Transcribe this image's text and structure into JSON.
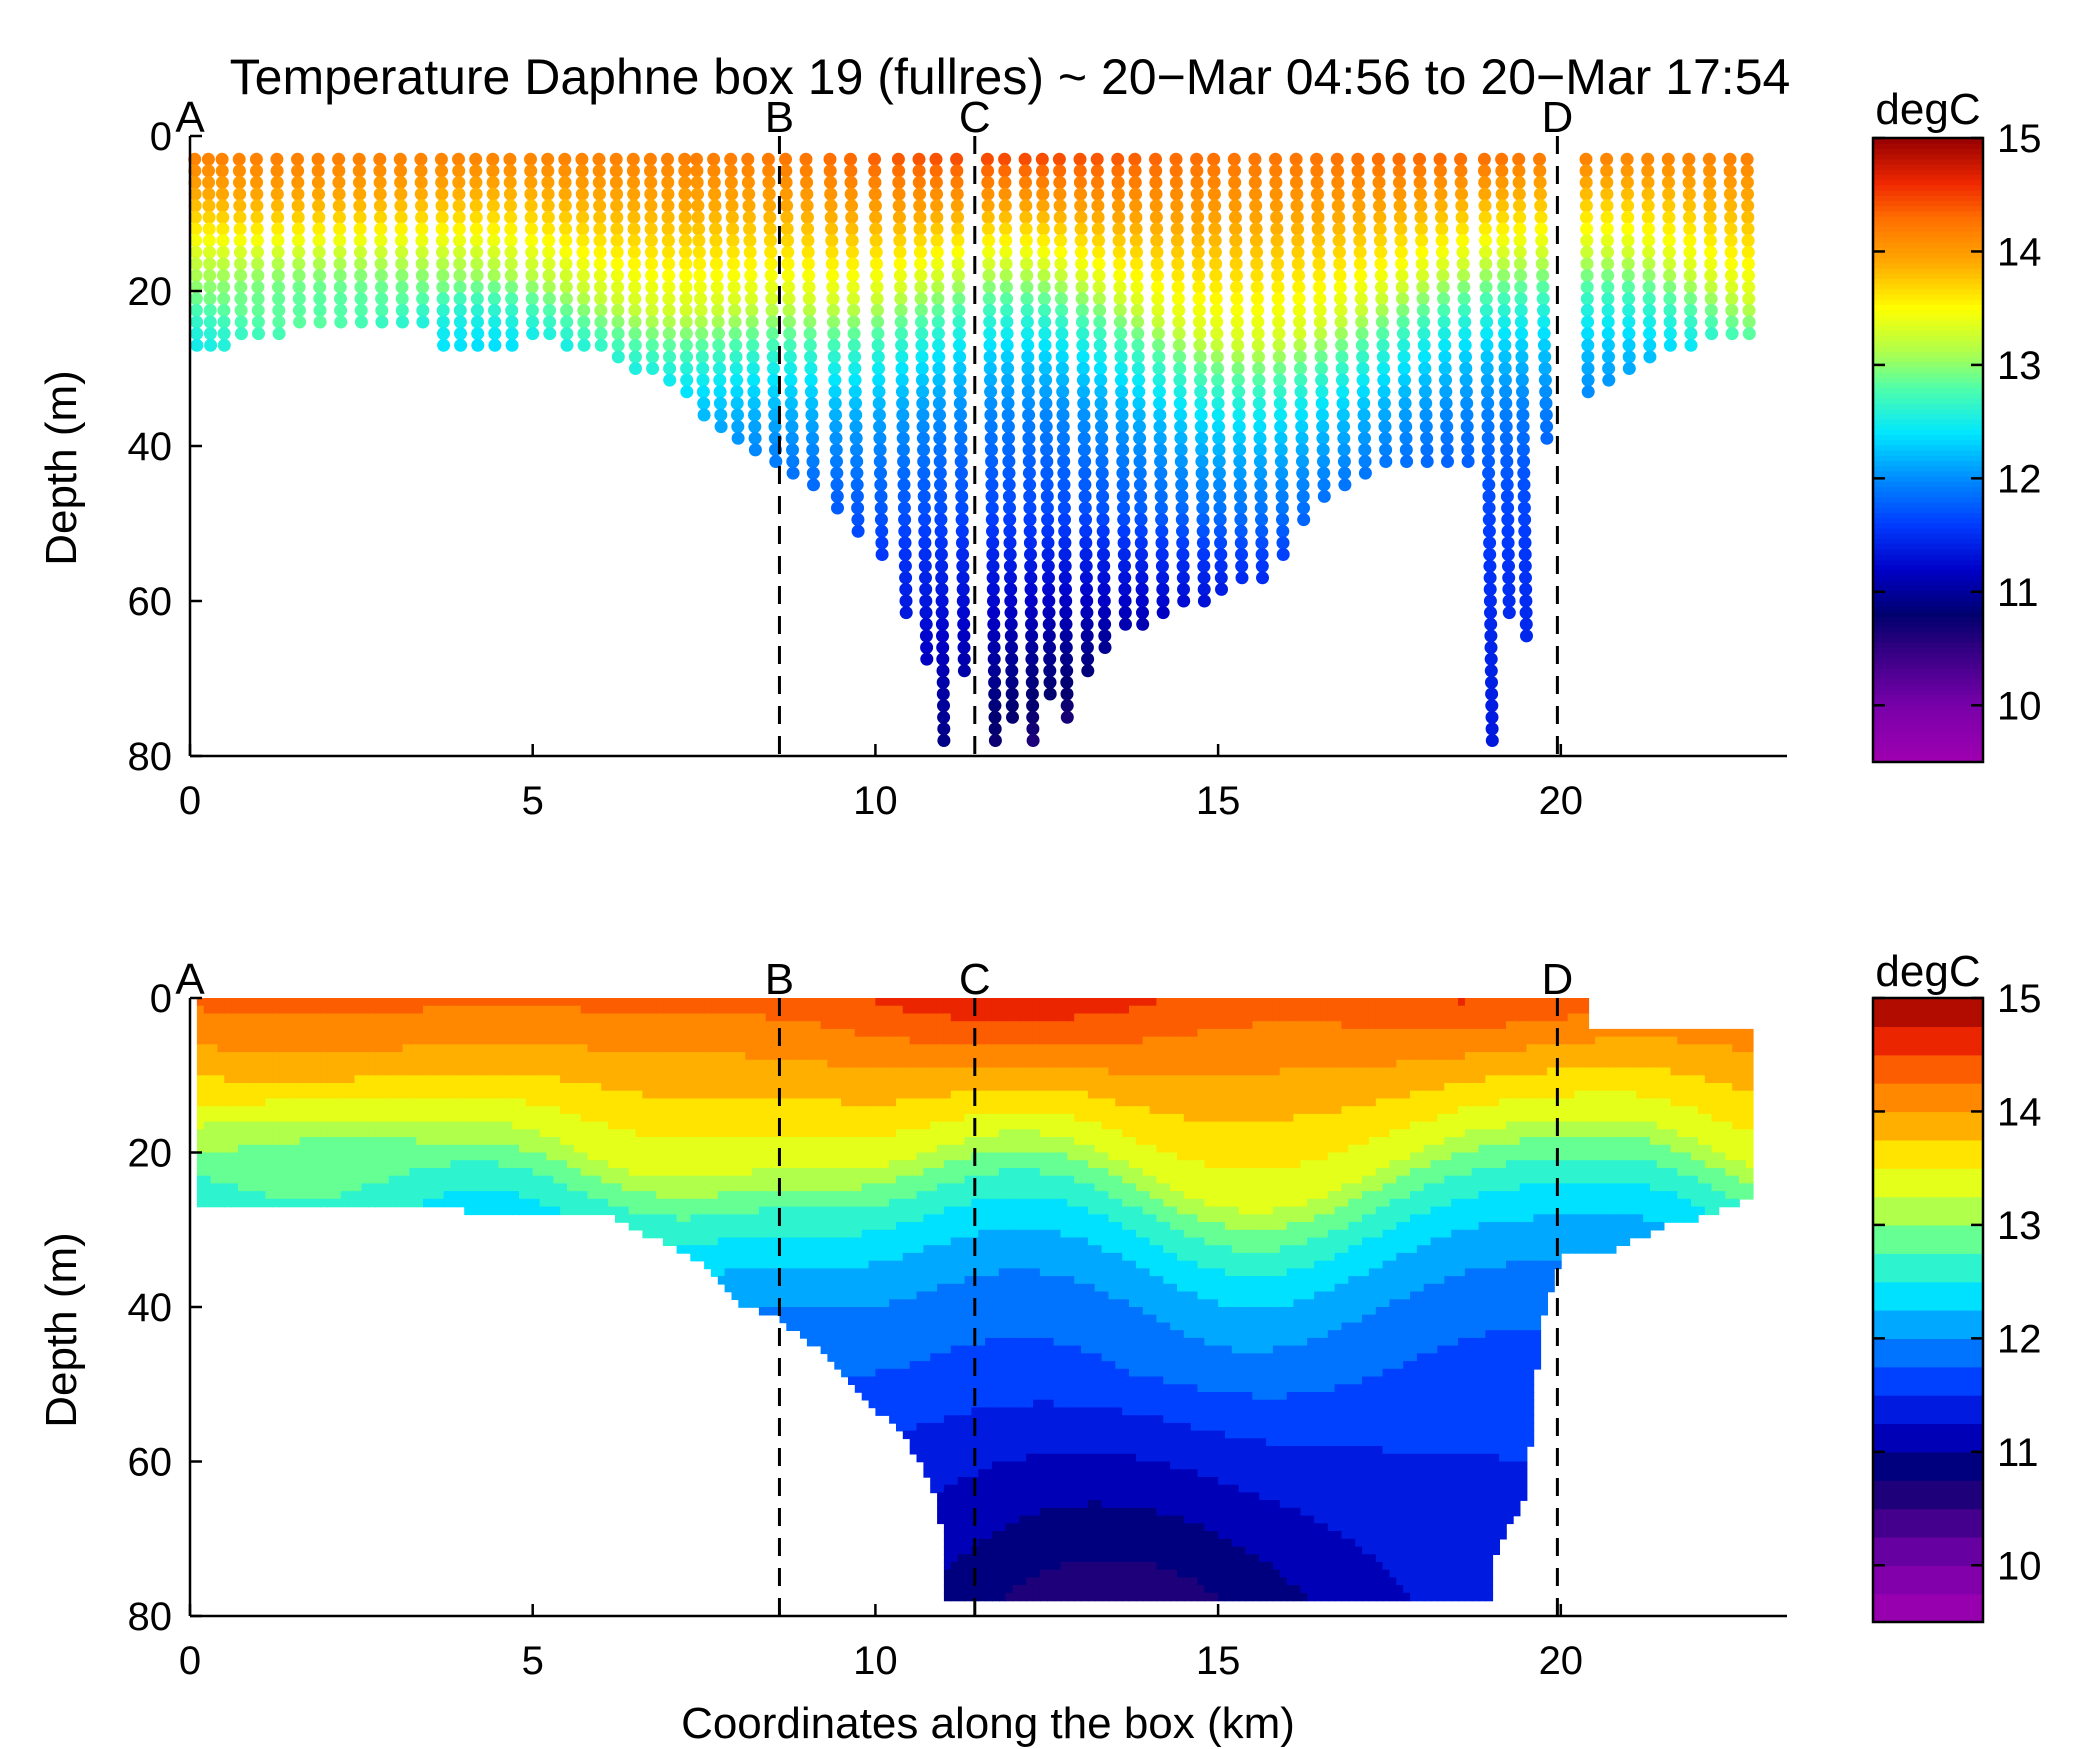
{
  "figure": {
    "title": "Temperature Daphne box 19 (fullres) ~ 20−Mar 04:56 to 20−Mar 17:54",
    "colormap": [
      "#800080",
      "#a000b0",
      "#5a00a0",
      "#1a0070",
      "#000080",
      "#0000c8",
      "#0000ff",
      "#0050ff",
      "#00a0ff",
      "#00e0ff",
      "#40ffc0",
      "#a0ff60",
      "#ffff00",
      "#ffc000",
      "#ff8000",
      "#ff3000",
      "#e00000",
      "#800000"
    ]
  },
  "chart_data": [
    {
      "type": "scatter",
      "name": "top",
      "description_of_marks": "glider dive profiles (sawtooth), colored by temperature",
      "xlabel": "",
      "ylabel": "Depth (m)",
      "xlim": [
        0,
        23.3
      ],
      "ylim": [
        80,
        0
      ],
      "xticks": [
        0,
        5,
        10,
        15,
        20
      ],
      "yticks": [
        0,
        20,
        40,
        60,
        80
      ],
      "colorbar": {
        "label": "degC",
        "range": [
          9.5,
          15
        ],
        "ticks": [
          10,
          11,
          12,
          13,
          14,
          15
        ],
        "style": "continuous"
      },
      "sections": [
        {
          "label": "A",
          "x": 0
        },
        {
          "label": "B",
          "x": 8.6
        },
        {
          "label": "C",
          "x": 11.45
        },
        {
          "label": "D",
          "x": 19.95
        }
      ],
      "profiles": [
        {
          "x": 0.1,
          "max_depth": 27
        },
        {
          "x": 0.3,
          "max_depth": 27
        },
        {
          "x": 0.5,
          "max_depth": 27
        },
        {
          "x": 0.75,
          "max_depth": 26
        },
        {
          "x": 1.0,
          "max_depth": 26
        },
        {
          "x": 1.3,
          "max_depth": 26
        },
        {
          "x": 1.6,
          "max_depth": 25
        },
        {
          "x": 1.9,
          "max_depth": 25
        },
        {
          "x": 2.2,
          "max_depth": 24
        },
        {
          "x": 2.5,
          "max_depth": 24
        },
        {
          "x": 2.8,
          "max_depth": 24
        },
        {
          "x": 3.1,
          "max_depth": 24
        },
        {
          "x": 3.4,
          "max_depth": 25
        },
        {
          "x": 3.7,
          "max_depth": 27
        },
        {
          "x": 3.95,
          "max_depth": 28
        },
        {
          "x": 4.2,
          "max_depth": 28
        },
        {
          "x": 4.45,
          "max_depth": 28
        },
        {
          "x": 4.7,
          "max_depth": 27
        },
        {
          "x": 5.0,
          "max_depth": 26
        },
        {
          "x": 5.25,
          "max_depth": 26
        },
        {
          "x": 5.5,
          "max_depth": 27
        },
        {
          "x": 5.75,
          "max_depth": 27
        },
        {
          "x": 6.0,
          "max_depth": 28
        },
        {
          "x": 6.25,
          "max_depth": 29
        },
        {
          "x": 6.5,
          "max_depth": 30
        },
        {
          "x": 6.75,
          "max_depth": 31
        },
        {
          "x": 7.0,
          "max_depth": 32
        },
        {
          "x": 7.25,
          "max_depth": 34
        },
        {
          "x": 7.5,
          "max_depth": 36
        },
        {
          "x": 7.75,
          "max_depth": 38
        },
        {
          "x": 8.0,
          "max_depth": 40
        },
        {
          "x": 8.25,
          "max_depth": 41
        },
        {
          "x": 8.55,
          "max_depth": 43
        },
        {
          "x": 8.8,
          "max_depth": 44
        },
        {
          "x": 9.1,
          "max_depth": 46
        },
        {
          "x": 9.45,
          "max_depth": 49
        },
        {
          "x": 9.75,
          "max_depth": 52
        },
        {
          "x": 10.1,
          "max_depth": 55
        },
        {
          "x": 10.45,
          "max_depth": 62
        },
        {
          "x": 10.75,
          "max_depth": 68
        },
        {
          "x": 11.0,
          "max_depth": 78
        },
        {
          "x": 11.3,
          "max_depth": 70
        },
        {
          "x": 11.75,
          "max_depth": 78
        },
        {
          "x": 12.0,
          "max_depth": 75
        },
        {
          "x": 12.3,
          "max_depth": 78
        },
        {
          "x": 12.55,
          "max_depth": 72
        },
        {
          "x": 12.8,
          "max_depth": 75
        },
        {
          "x": 13.1,
          "max_depth": 70
        },
        {
          "x": 13.35,
          "max_depth": 66
        },
        {
          "x": 13.65,
          "max_depth": 64
        },
        {
          "x": 13.9,
          "max_depth": 63
        },
        {
          "x": 14.2,
          "max_depth": 62
        },
        {
          "x": 14.5,
          "max_depth": 61
        },
        {
          "x": 14.8,
          "max_depth": 60
        },
        {
          "x": 15.05,
          "max_depth": 59
        },
        {
          "x": 15.35,
          "max_depth": 58
        },
        {
          "x": 15.65,
          "max_depth": 58
        },
        {
          "x": 15.95,
          "max_depth": 54
        },
        {
          "x": 16.25,
          "max_depth": 50
        },
        {
          "x": 16.55,
          "max_depth": 47
        },
        {
          "x": 16.85,
          "max_depth": 45
        },
        {
          "x": 17.15,
          "max_depth": 44
        },
        {
          "x": 17.45,
          "max_depth": 43
        },
        {
          "x": 17.75,
          "max_depth": 42
        },
        {
          "x": 18.05,
          "max_depth": 42
        },
        {
          "x": 18.35,
          "max_depth": 43
        },
        {
          "x": 18.65,
          "max_depth": 43
        },
        {
          "x": 19.0,
          "max_depth": 78
        },
        {
          "x": 19.25,
          "max_depth": 62
        },
        {
          "x": 19.5,
          "max_depth": 65
        },
        {
          "x": 19.8,
          "max_depth": 40
        },
        {
          "x": 20.4,
          "max_depth": 33
        },
        {
          "x": 20.7,
          "max_depth": 32
        },
        {
          "x": 21.0,
          "max_depth": 31
        },
        {
          "x": 21.3,
          "max_depth": 29
        },
        {
          "x": 21.6,
          "max_depth": 28
        },
        {
          "x": 21.9,
          "max_depth": 27
        },
        {
          "x": 22.2,
          "max_depth": 26
        },
        {
          "x": 22.5,
          "max_depth": 26
        },
        {
          "x": 22.75,
          "max_depth": 26
        }
      ]
    },
    {
      "type": "heatmap",
      "name": "bottom",
      "description_of_marks": "interpolated filled-contour temperature section",
      "xlabel": "Coordinates along the box (km)",
      "ylabel": "Depth (m)",
      "xlim": [
        0,
        23.3
      ],
      "ylim": [
        80,
        0
      ],
      "xticks": [
        0,
        5,
        10,
        15,
        20
      ],
      "yticks": [
        0,
        20,
        40,
        60,
        80
      ],
      "colorbar": {
        "label": "degC",
        "range": [
          9.5,
          15
        ],
        "ticks": [
          10,
          11,
          12,
          13,
          14,
          15
        ],
        "style": "discrete",
        "levels": 22
      },
      "sections": [
        {
          "label": "A",
          "x": 0
        },
        {
          "label": "B",
          "x": 8.6
        },
        {
          "label": "C",
          "x": 11.45
        },
        {
          "label": "D",
          "x": 19.95
        }
      ],
      "bottom_boundary": [
        [
          0.1,
          27
        ],
        [
          4.0,
          27
        ],
        [
          6.2,
          28
        ],
        [
          7.5,
          34
        ],
        [
          8.0,
          39
        ],
        [
          8.6,
          41
        ],
        [
          9.3,
          46
        ],
        [
          9.9,
          52
        ],
        [
          10.4,
          56
        ],
        [
          10.8,
          62
        ],
        [
          11.0,
          70
        ],
        [
          11.0,
          78
        ],
        [
          19.0,
          78
        ],
        [
          19.0,
          72
        ],
        [
          19.5,
          64
        ],
        [
          19.55,
          58
        ],
        [
          19.7,
          42
        ],
        [
          20.0,
          33
        ],
        [
          20.8,
          32
        ],
        [
          21.5,
          29
        ],
        [
          22.0,
          28
        ],
        [
          22.6,
          26
        ],
        [
          22.8,
          26
        ]
      ],
      "top_boundary": [
        [
          0.1,
          0
        ],
        [
          20.3,
          0
        ],
        [
          20.6,
          4
        ],
        [
          22.8,
          4
        ]
      ]
    }
  ]
}
